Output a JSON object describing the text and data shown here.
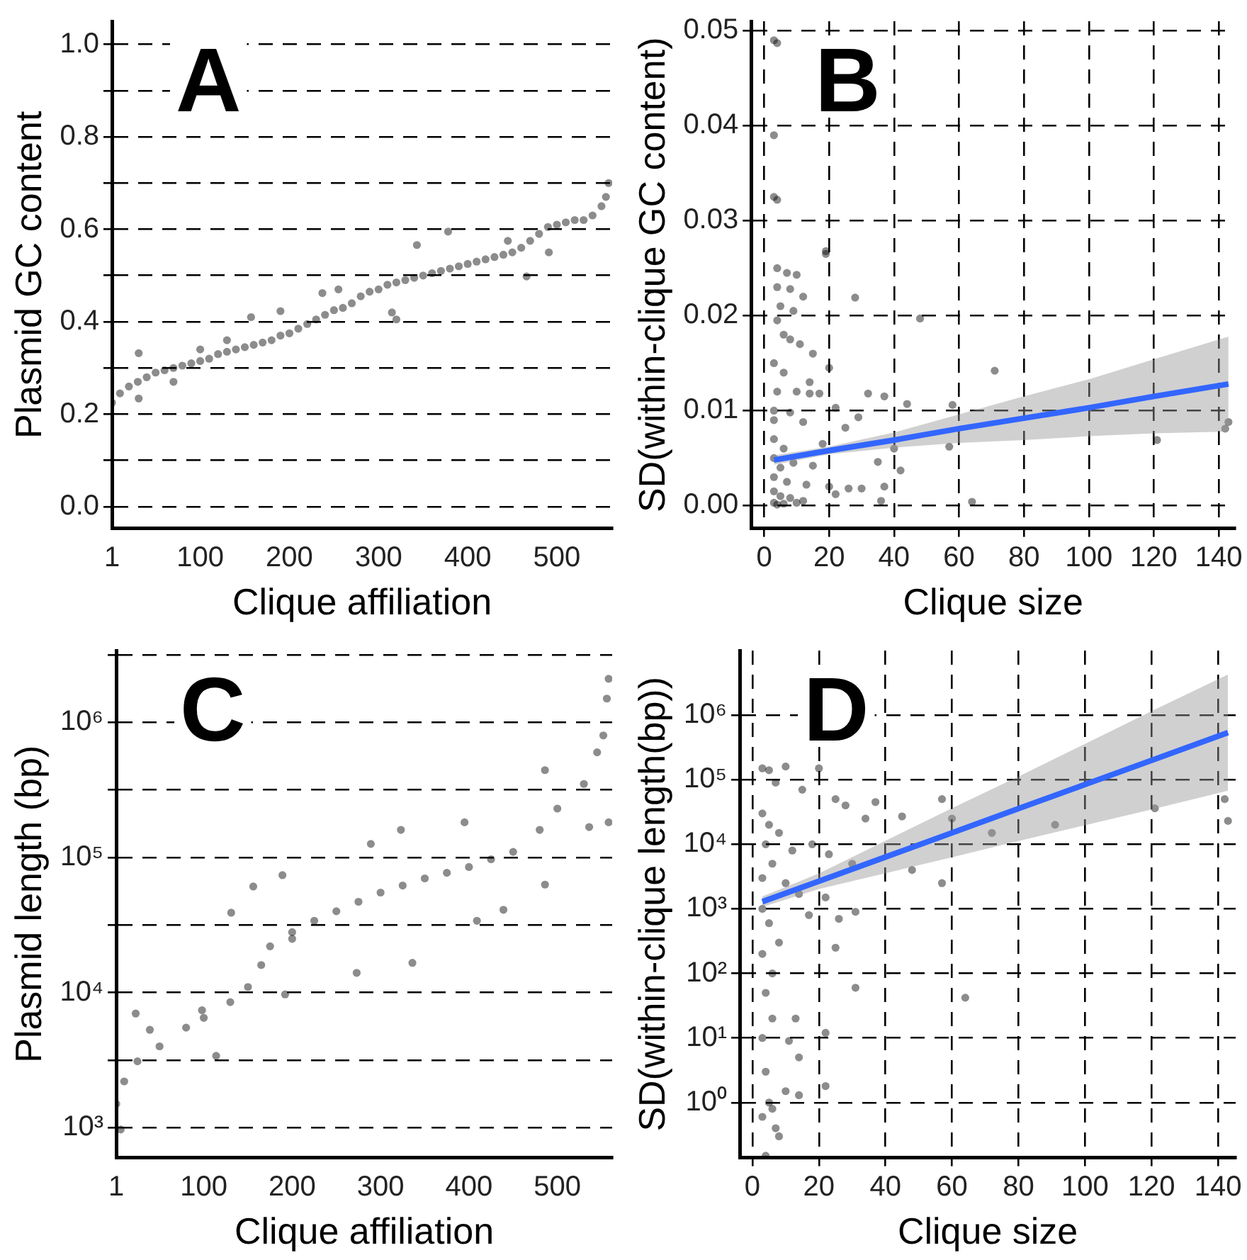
{
  "chart_data": [
    {
      "type": "scatter",
      "xlabel": "Clique affiliation",
      "ylabel": "Plasmid GC content",
      "annotations": [
        "A"
      ],
      "grid": "y",
      "xlim": [
        1,
        562
      ],
      "xticks": [
        1,
        100,
        200,
        300,
        400,
        500
      ],
      "ylim": [
        -0.047,
        1.05
      ],
      "yticks": [
        {
          "value": 0,
          "label": "0.0"
        },
        {
          "value": 0.1,
          "label": null
        },
        0.2,
        {
          "value": 0.3,
          "label": null
        },
        0.4,
        {
          "value": 0.5,
          "label": null
        },
        0.6,
        {
          "value": 0.7,
          "label": null
        },
        0.8,
        {
          "value": 0.9,
          "label": null
        },
        {
          "value": 1,
          "label": "1.0"
        }
      ],
      "series": [
        {
          "marker": "circle",
          "color": "#000000",
          "x": [
            1,
            10,
            20,
            30,
            40,
            50,
            60,
            70,
            80,
            90,
            100,
            110,
            120,
            130,
            140,
            150,
            160,
            170,
            180,
            190,
            200,
            210,
            220,
            230,
            240,
            250,
            260,
            270,
            280,
            290,
            300,
            310,
            320,
            330,
            340,
            350,
            360,
            370,
            380,
            390,
            400,
            410,
            420,
            430,
            440,
            450,
            460,
            470,
            480,
            490,
            500,
            510,
            520,
            530,
            540,
            550,
            555,
            558,
            31,
            31,
            130,
            190,
            157,
            237,
            315,
            320,
            343,
            378,
            466,
            491,
            445,
            255,
            100,
            70
          ],
          "values": [
            0.225,
            0.245,
            0.26,
            0.27,
            0.28,
            0.29,
            0.295,
            0.3,
            0.305,
            0.31,
            0.315,
            0.32,
            0.33,
            0.335,
            0.34,
            0.345,
            0.35,
            0.355,
            0.36,
            0.37,
            0.375,
            0.385,
            0.395,
            0.405,
            0.415,
            0.425,
            0.43,
            0.44,
            0.455,
            0.465,
            0.47,
            0.48,
            0.485,
            0.49,
            0.495,
            0.5,
            0.505,
            0.51,
            0.515,
            0.52,
            0.525,
            0.53,
            0.535,
            0.54,
            0.545,
            0.55,
            0.56,
            0.575,
            0.59,
            0.605,
            0.61,
            0.615,
            0.62,
            0.62,
            0.63,
            0.65,
            0.67,
            0.7,
            0.332,
            0.234,
            0.36,
            0.423,
            0.41,
            0.462,
            0.42,
            0.405,
            0.566,
            0.595,
            0.498,
            0.55,
            0.575,
            0.47,
            0.34,
            0.27
          ]
        }
      ]
    },
    {
      "type": "scatter",
      "xlabel": "Clique size",
      "ylabel": "SD(within-clique GC content)",
      "annotations": [
        "B"
      ],
      "grid": true,
      "xlim": [
        -4,
        145
      ],
      "xticks": [
        0,
        20,
        40,
        60,
        80,
        100,
        120,
        140
      ],
      "ylim": [
        -0.0024,
        0.051
      ],
      "yticks": [
        {
          "value": 0,
          "label": "0.00"
        },
        {
          "value": 0.01,
          "label": "0.01"
        },
        {
          "value": 0.02,
          "label": "0.02"
        },
        {
          "value": 0.03,
          "label": "0.03"
        },
        {
          "value": 0.04,
          "label": "0.04"
        },
        {
          "value": 0.05,
          "label": "0.05"
        }
      ],
      "series": [
        {
          "marker": "circle",
          "color": "#000000",
          "x": [
            3,
            4,
            3,
            3,
            4,
            19,
            19,
            28,
            4,
            7,
            10,
            4,
            8,
            12,
            5,
            9,
            4,
            48,
            6,
            8,
            11,
            15,
            3,
            6,
            20,
            71,
            14,
            4,
            10,
            14,
            17,
            32,
            37,
            44,
            58,
            3,
            8,
            22,
            29,
            3,
            12,
            25,
            143,
            142,
            121,
            57,
            3,
            6,
            40,
            18,
            3,
            5,
            9,
            15,
            35,
            42,
            3,
            7,
            13,
            20,
            26,
            30,
            37,
            3,
            5,
            8,
            12,
            22,
            36,
            3,
            4,
            6,
            64,
            10
          ],
          "values": [
            0.049,
            0.0487,
            0.039,
            0.0325,
            0.0322,
            0.0268,
            0.0265,
            0.0219,
            0.025,
            0.0245,
            0.0243,
            0.023,
            0.0228,
            0.022,
            0.021,
            0.0205,
            0.0195,
            0.0197,
            0.018,
            0.0175,
            0.017,
            0.016,
            0.015,
            0.014,
            0.0145,
            0.0142,
            0.013,
            0.012,
            0.012,
            0.0118,
            0.0118,
            0.0118,
            0.0115,
            0.0107,
            0.0106,
            0.01,
            0.0098,
            0.0103,
            0.0093,
            0.009,
            0.0088,
            0.0082,
            0.0088,
            0.0081,
            0.0069,
            0.0062,
            0.007,
            0.006,
            0.006,
            0.0065,
            0.005,
            0.004,
            0.0045,
            0.0042,
            0.0046,
            0.0037,
            0.003,
            0.0025,
            0.0022,
            0.002,
            0.0018,
            0.0018,
            0.002,
            0.0015,
            0.001,
            0.0008,
            0.0005,
            0.0012,
            0.0005,
            0.0003,
            0.0001,
            0.0002,
            0.0004,
            0.0003
          ]
        },
        {
          "type": "line",
          "marker": "none",
          "color": "#3366ff",
          "x": [
            3,
            20,
            40,
            60,
            80,
            100,
            120,
            143
          ],
          "values": [
            0.0048,
            0.0058,
            0.0069,
            0.0081,
            0.0092,
            0.0103,
            0.0115,
            0.0128
          ],
          "lower": [
            0.0043,
            0.0054,
            0.0061,
            0.0066,
            0.0069,
            0.0073,
            0.0076,
            0.0078
          ],
          "upper": [
            0.0053,
            0.0062,
            0.0077,
            0.0096,
            0.0115,
            0.0133,
            0.0154,
            0.0178
          ]
        }
      ]
    },
    {
      "type": "scatter",
      "xlabel": "Clique affiliation",
      "ylabel": "Plasmid length (bp)",
      "annotations": [
        "C"
      ],
      "grid": "y",
      "log": "y",
      "xlim": [
        1,
        562
      ],
      "xticks": [
        1,
        100,
        200,
        300,
        400,
        500
      ],
      "ylim": [
        600,
        3400000
      ],
      "yticks": [
        {
          "value": 1000,
          "label": "10³"
        },
        {
          "value": 3162,
          "label": null
        },
        {
          "value": 10000,
          "label": "10⁴"
        },
        {
          "value": 31623,
          "label": null
        },
        {
          "value": 100000,
          "label": "10⁵"
        },
        {
          "value": 316228,
          "label": null
        },
        {
          "value": 1000000,
          "label": "10⁶"
        },
        {
          "value": 3162278,
          "label": null
        }
      ],
      "series": [
        {
          "marker": "circle",
          "color": "#000000",
          "x": [
            1,
            10,
            25,
            50,
            80,
            100,
            130,
            150,
            165,
            175,
            200,
            225,
            250,
            275,
            300,
            325,
            350,
            375,
            400,
            425,
            450,
            480,
            500,
            530,
            545,
            552,
            556,
            558,
            6,
            23,
            114,
            192,
            189,
            131,
            273,
            336,
            289,
            395,
            486,
            558,
            486,
            439,
            409,
            536,
            323,
            156,
            200,
            98,
            39
          ],
          "values": [
            1500,
            2200,
            3100,
            4000,
            5500,
            6500,
            8500,
            11000,
            16000,
            22000,
            28000,
            34000,
            40000,
            47000,
            55000,
            62000,
            70000,
            77000,
            85000,
            97000,
            110000,
            160000,
            230000,
            350000,
            600000,
            800000,
            1500000,
            2100000,
            970,
            7000,
            3400,
            9700,
            74000,
            39000,
            14000,
            16600,
            126000,
            182000,
            443000,
            182000,
            63000,
            41000,
            34000,
            168000,
            160000,
            61000,
            25000,
            7400,
            5300
          ]
        }
      ]
    },
    {
      "type": "scatter",
      "xlabel": "Clique size",
      "ylabel": "SD(within-clique length(bp))",
      "annotations": [
        "D"
      ],
      "grid": true,
      "log": "y",
      "xlim": [
        -3.8,
        145.3
      ],
      "xticks": [
        0,
        20,
        40,
        60,
        80,
        100,
        120,
        140
      ],
      "ylim": [
        0.14,
        10000000
      ],
      "yticks": [
        {
          "value": 1,
          "label": "10⁰"
        },
        {
          "value": 10,
          "label": "10¹"
        },
        {
          "value": 100,
          "label": "10²"
        },
        {
          "value": 1000,
          "label": "10³"
        },
        {
          "value": 10000,
          "label": "10⁴"
        },
        {
          "value": 100000,
          "label": "10⁵"
        },
        {
          "value": 1000000,
          "label": "10⁶"
        }
      ],
      "series": [
        {
          "marker": "circle",
          "color": "#000000",
          "x": [
            3,
            5,
            10,
            20,
            7,
            15,
            25,
            28,
            37,
            45,
            57,
            34,
            60,
            91,
            72,
            121,
            142,
            143,
            3,
            5,
            8,
            12,
            18,
            23,
            30,
            48,
            57,
            4,
            6,
            3,
            10,
            14,
            22,
            17,
            26,
            31,
            25,
            3,
            5,
            8,
            3,
            6,
            31,
            64,
            4,
            6,
            13,
            3,
            14,
            11,
            22,
            4,
            22,
            5,
            10,
            14,
            3,
            8,
            7,
            6,
            4
          ],
          "values": [
            150000,
            140000,
            160000,
            150000,
            90000,
            70000,
            50000,
            40000,
            45000,
            27000,
            50000,
            25000,
            25000,
            20000,
            15000,
            36000,
            50000,
            23000,
            30000,
            20000,
            15000,
            8000,
            10000,
            7000,
            5000,
            4000,
            2500,
            10000,
            5000,
            3000,
            2500,
            1700,
            1500,
            800,
            700,
            900,
            250,
            1000,
            600,
            300,
            200,
            100,
            60,
            42,
            50,
            20,
            20,
            10,
            5,
            9,
            12,
            3,
            1.8,
            1,
            1.5,
            1.3,
            0.6,
            0.3,
            0.4,
            0.8,
            0.15
          ]
        },
        {
          "type": "line",
          "marker": "none",
          "color": "#3366ff",
          "x": [
            3,
            20,
            40,
            60,
            80,
            100,
            120,
            143
          ],
          "values": [
            1290,
            2680,
            6340,
            15000,
            35600,
            84100,
            199000,
            537000
          ],
          "lower": [
            1070,
            2030,
            3560,
            6270,
            11200,
            19700,
            34600,
            67600
          ],
          "upper": [
            1550,
            3530,
            11300,
            36100,
            112000,
            359000,
            1150000,
            4270000
          ]
        }
      ]
    }
  ]
}
